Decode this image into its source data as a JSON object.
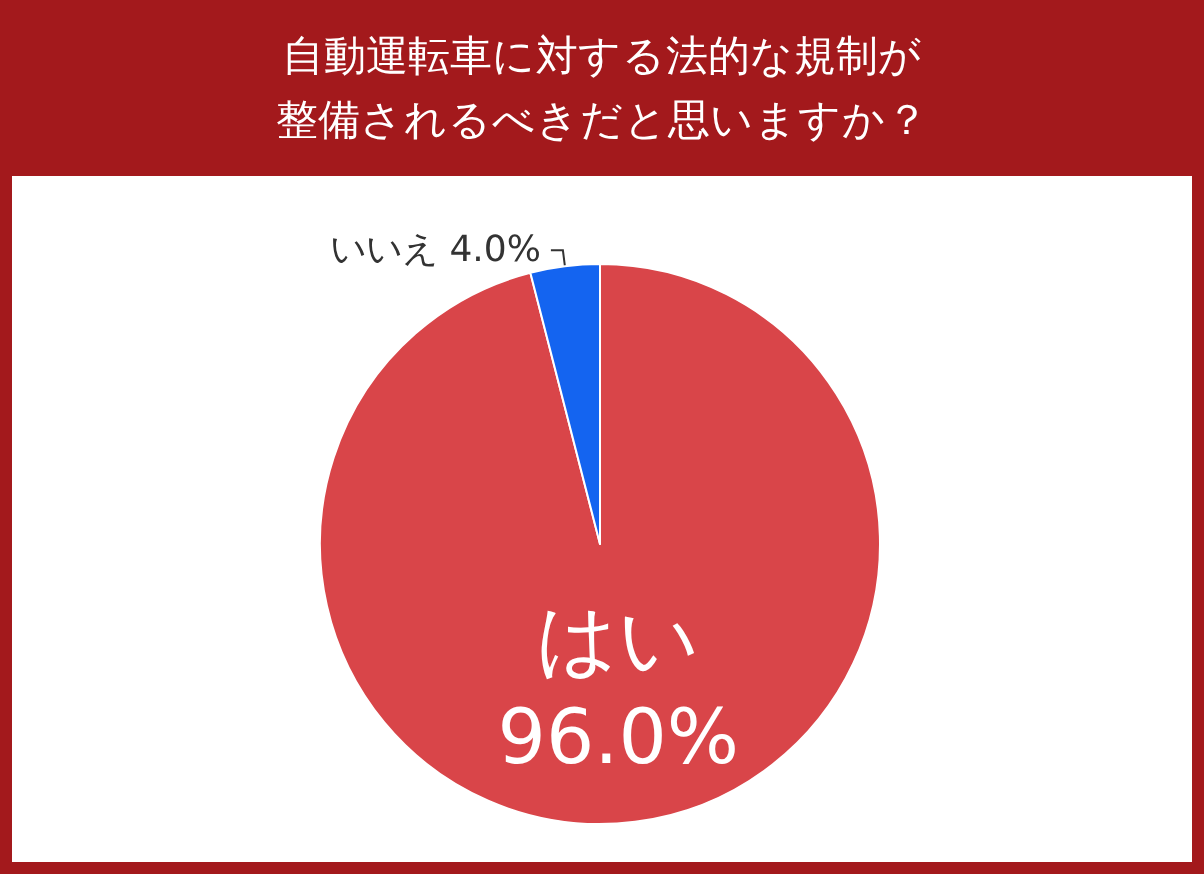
{
  "chart_data": {
    "type": "pie",
    "title": "自動運転車に対する法的な規制が整備されるべきだと思いますか？",
    "categories": [
      "はい",
      "いいえ"
    ],
    "values": [
      96.0,
      4.0
    ],
    "colors": [
      "#d94549",
      "#1464f0"
    ],
    "value_labels": [
      "96.0%",
      "4.0%"
    ],
    "legend": false
  }
}
